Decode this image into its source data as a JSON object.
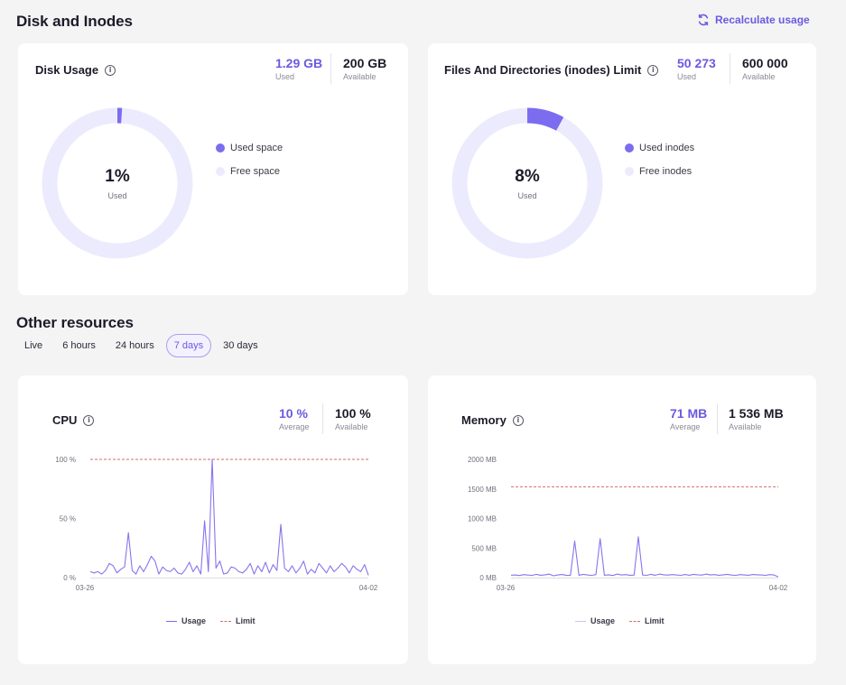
{
  "header": {
    "title": "Disk and Inodes",
    "recalculate_label": "Recalculate usage"
  },
  "disk_card": {
    "title": "Disk Usage",
    "used_value": "1.29 GB",
    "used_label": "Used",
    "available_value": "200 GB",
    "available_label": "Available",
    "percent": 1,
    "percent_text": "1%",
    "center_label": "Used",
    "legend": [
      "Used space",
      "Free space"
    ]
  },
  "inodes_card": {
    "title": "Files And Directories (inodes) Limit",
    "used_value": "50 273",
    "used_label": "Used",
    "available_value": "600 000",
    "available_label": "Available",
    "percent": 8,
    "percent_text": "8%",
    "center_label": "Used",
    "legend": [
      "Used inodes",
      "Free inodes"
    ]
  },
  "other": {
    "title": "Other resources",
    "tabs": [
      "Live",
      "6 hours",
      "24 hours",
      "7 days",
      "30 days"
    ],
    "active_tab": "7 days"
  },
  "colors": {
    "accent": "#6a5ae0",
    "donut_track": "#ecebfd",
    "donut_fill": "#7b6cf0",
    "limit_line": "#d66b6b"
  },
  "cpu_card": {
    "title": "CPU",
    "avg_value": "10 %",
    "avg_label": "Average",
    "avail_value": "100 %",
    "avail_label": "Available",
    "legend_usage": "Usage",
    "legend_limit": "Limit"
  },
  "memory_card": {
    "title": "Memory",
    "avg_value": "71 MB",
    "avg_label": "Average",
    "avail_value": "1 536 MB",
    "avail_label": "Available",
    "legend_usage": "Usage",
    "legend_limit": "Limit"
  },
  "chart_data": [
    {
      "type": "line",
      "name": "CPU",
      "ylim": [
        0,
        100
      ],
      "yticks": [
        "0 %",
        "50 %",
        "100 %"
      ],
      "ytick_values": [
        0,
        50,
        100
      ],
      "xticks": [
        "03-26",
        "04-02"
      ],
      "limit": 100,
      "series": [
        {
          "name": "Usage",
          "values": [
            5,
            4,
            5,
            3,
            6,
            12,
            10,
            4,
            7,
            9,
            38,
            6,
            3,
            10,
            5,
            11,
            18,
            14,
            3,
            9,
            6,
            5,
            8,
            4,
            3,
            7,
            13,
            5,
            10,
            3,
            48,
            5,
            100,
            8,
            14,
            3,
            4,
            9,
            8,
            5,
            4,
            7,
            12,
            3,
            10,
            5,
            13,
            4,
            11,
            6,
            45,
            8,
            5,
            10,
            4,
            8,
            14,
            3,
            7,
            4,
            12,
            8,
            4,
            10,
            5,
            8,
            12,
            9,
            4,
            10,
            7,
            5,
            11,
            2
          ]
        },
        {
          "name": "Limit",
          "values": [
            100,
            100
          ]
        }
      ]
    },
    {
      "type": "line",
      "name": "Memory",
      "ylim": [
        0,
        2000
      ],
      "yticks": [
        "0 MB",
        "500 MB",
        "1000 MB",
        "1500 MB",
        "2000 MB"
      ],
      "ytick_values": [
        0,
        500,
        1000,
        1500,
        2000
      ],
      "xticks": [
        "03-26",
        "04-02"
      ],
      "limit": 1536,
      "series": [
        {
          "name": "Usage",
          "values": [
            40,
            45,
            35,
            50,
            42,
            38,
            55,
            40,
            48,
            60,
            30,
            45,
            52,
            40,
            38,
            620,
            40,
            55,
            45,
            38,
            50,
            660,
            40,
            48,
            35,
            60,
            45,
            50,
            40,
            42,
            690,
            45,
            38,
            55,
            40,
            60,
            48,
            42,
            50,
            45,
            38,
            52,
            40,
            55,
            48,
            42,
            60,
            45,
            50,
            40,
            48,
            55,
            42,
            38,
            50,
            45,
            40,
            52,
            48,
            44,
            38,
            50,
            45,
            10
          ]
        },
        {
          "name": "Limit",
          "values": [
            1536,
            1536
          ]
        }
      ]
    }
  ]
}
